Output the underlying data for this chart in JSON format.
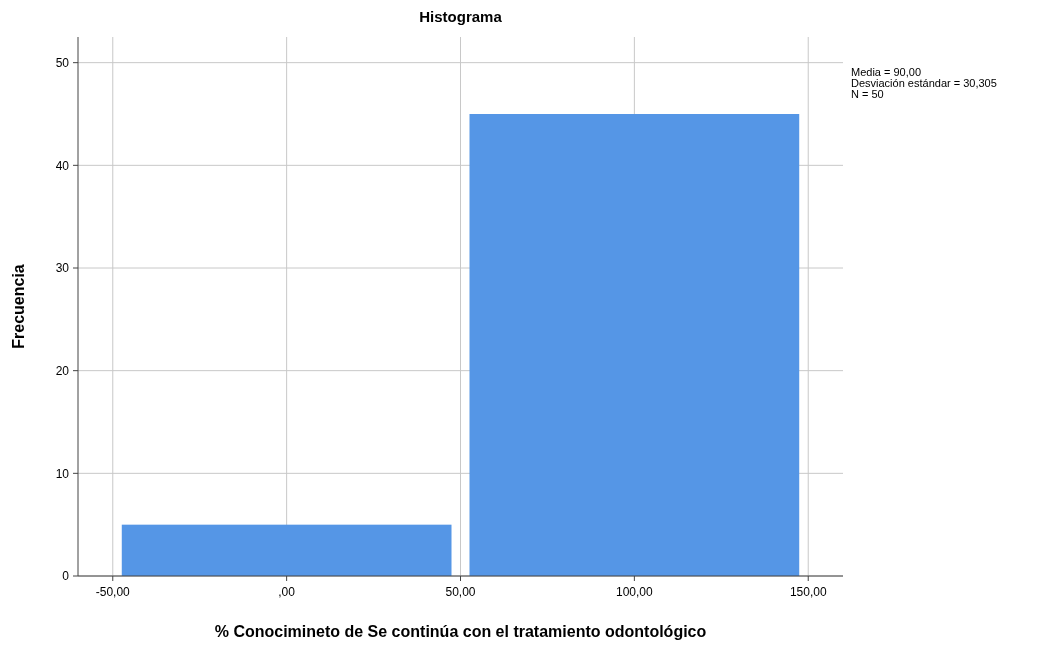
{
  "chart_data": {
    "type": "histogram",
    "title": "Histograma",
    "xlabel": "% Conocimineto de Se continúa con el tratamiento odontológico",
    "ylabel": "Frecuencia",
    "bins": [
      -50,
      50,
      150
    ],
    "values": [
      5,
      45
    ],
    "color": "#5596e6",
    "xlim": [
      -60,
      160
    ],
    "ylim": [
      0,
      52.5
    ],
    "xticks": [
      {
        "value": -50,
        "label": "-50,00"
      },
      {
        "value": 0,
        "label": ",00"
      },
      {
        "value": 50,
        "label": "50,00"
      },
      {
        "value": 100,
        "label": "100,00"
      },
      {
        "value": 150,
        "label": "150,00"
      }
    ],
    "yticks": [
      0,
      10,
      20,
      30,
      40,
      50
    ],
    "grid": true,
    "annotations": [
      "Media = 90,00",
      "Desviación estándar = 30,305",
      "N = 50"
    ]
  }
}
